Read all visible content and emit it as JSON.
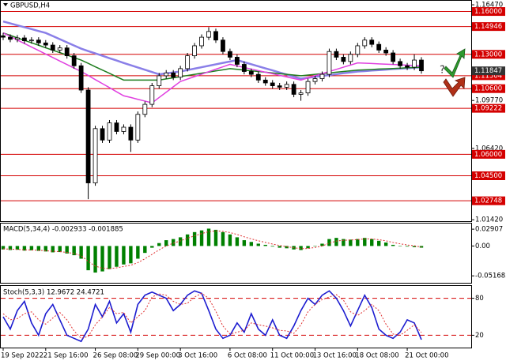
{
  "chart_data": [
    {
      "type": "candlestick",
      "title": "GBPUSD,H4",
      "categories": [
        "19 Sep 2022",
        null,
        null,
        null,
        null,
        null,
        "21 Sep 16:00",
        null,
        null,
        null,
        null,
        null,
        null,
        "26 Sep 08:00",
        null,
        null,
        null,
        null,
        null,
        "29 Sep 00:00",
        null,
        null,
        null,
        null,
        null,
        "3 Oct 16:00",
        null,
        null,
        null,
        null,
        null,
        null,
        "6 Oct 08:00",
        null,
        null,
        null,
        null,
        null,
        "11 Oct 00:00",
        null,
        null,
        null,
        null,
        null,
        "13 Oct 16:00",
        null,
        null,
        null,
        null,
        null,
        "18 Oct 08:00",
        null,
        null,
        null,
        null,
        null,
        null,
        "21 Oct 00:00",
        null,
        null
      ],
      "open": [
        1.143,
        1.142,
        1.1405,
        1.1415,
        1.1395,
        1.14,
        1.138,
        1.1365,
        1.133,
        1.1345,
        1.129,
        1.122,
        1.105,
        1.04,
        1.078,
        1.07,
        1.082,
        1.076,
        1.079,
        1.07,
        1.088,
        1.095,
        1.108,
        1.115,
        1.117,
        1.114,
        1.12,
        1.129,
        1.136,
        1.142,
        1.146,
        1.14,
        1.132,
        1.128,
        1.123,
        1.118,
        1.116,
        1.112,
        1.11,
        1.108,
        1.107,
        1.109,
        1.102,
        1.103,
        1.111,
        1.113,
        1.116,
        1.132,
        1.128,
        1.125,
        1.13,
        1.136,
        1.14,
        1.137,
        1.133,
        1.131,
        1.125,
        1.122,
        1.121,
        1.126
      ],
      "high": [
        1.145,
        1.144,
        1.1435,
        1.1435,
        1.142,
        1.142,
        1.14,
        1.1385,
        1.1365,
        1.1365,
        1.131,
        1.124,
        1.107,
        1.08,
        1.08,
        1.084,
        1.084,
        1.081,
        1.081,
        1.09,
        1.097,
        1.11,
        1.117,
        1.119,
        1.119,
        1.122,
        1.131,
        1.138,
        1.144,
        1.149,
        1.148,
        1.142,
        1.134,
        1.13,
        1.125,
        1.12,
        1.118,
        1.114,
        1.112,
        1.11,
        1.111,
        1.111,
        1.105,
        1.113,
        1.115,
        1.118,
        1.134,
        1.134,
        1.13,
        1.132,
        1.138,
        1.142,
        1.142,
        1.139,
        1.135,
        1.133,
        1.127,
        1.124,
        1.13,
        1.128
      ],
      "low": [
        1.14,
        1.1385,
        1.1385,
        1.1375,
        1.1375,
        1.136,
        1.1345,
        1.131,
        1.131,
        1.127,
        1.12,
        1.103,
        1.0286,
        1.038,
        1.068,
        1.068,
        1.074,
        1.074,
        1.0617,
        1.068,
        1.086,
        1.093,
        1.106,
        1.113,
        1.112,
        1.112,
        1.118,
        1.127,
        1.134,
        1.14,
        1.138,
        1.13,
        1.126,
        1.121,
        1.116,
        1.114,
        1.11,
        1.108,
        1.106,
        1.105,
        1.105,
        1.1,
        1.0975,
        1.101,
        1.109,
        1.111,
        1.114,
        1.126,
        1.123,
        1.123,
        1.128,
        1.134,
        1.135,
        1.131,
        1.129,
        1.123,
        1.12,
        1.119,
        1.119,
        1.1165
      ],
      "close": [
        1.142,
        1.1405,
        1.1415,
        1.1395,
        1.14,
        1.138,
        1.1365,
        1.133,
        1.1345,
        1.129,
        1.122,
        1.105,
        1.04,
        1.078,
        1.07,
        1.082,
        1.076,
        1.079,
        1.07,
        1.088,
        1.095,
        1.108,
        1.115,
        1.117,
        1.114,
        1.12,
        1.129,
        1.136,
        1.142,
        1.146,
        1.14,
        1.132,
        1.128,
        1.123,
        1.118,
        1.116,
        1.112,
        1.11,
        1.108,
        1.107,
        1.109,
        1.102,
        1.103,
        1.111,
        1.113,
        1.116,
        1.132,
        1.128,
        1.125,
        1.13,
        1.136,
        1.14,
        1.137,
        1.133,
        1.131,
        1.125,
        1.122,
        1.121,
        1.126,
        1.11847
      ],
      "lines": [
        {
          "color": "#8a7fe8",
          "values": [
            1.153,
            1.1517,
            1.1503,
            1.149,
            1.1477,
            1.1463,
            1.145,
            1.1428,
            1.1406,
            1.1384,
            1.1362,
            1.134,
            1.1323,
            1.1307,
            1.129,
            1.1273,
            1.1257,
            1.124,
            1.1224,
            1.1208,
            1.1192,
            1.1176,
            1.116,
            1.1167,
            1.1173,
            1.118,
            1.119,
            1.12,
            1.121,
            1.122,
            1.123,
            1.124,
            1.125,
            1.126,
            1.1245,
            1.1231,
            1.1216,
            1.1202,
            1.1188,
            1.1173,
            1.1159,
            1.1144,
            1.113,
            1.1136,
            1.1143,
            1.1149,
            1.1155,
            1.1161,
            1.1168,
            1.1174,
            1.118,
            1.1183,
            1.1187,
            1.119,
            1.1193,
            1.1197,
            1.12,
            1.1203,
            1.1207,
            1.121
          ]
        },
        {
          "color": "#1e7d1e",
          "values": [
            1.145,
            1.1433,
            1.1415,
            1.1398,
            1.1381,
            1.1364,
            1.1346,
            1.1329,
            1.1312,
            1.1295,
            1.1277,
            1.126,
            1.1237,
            1.1213,
            1.119,
            1.1167,
            1.1143,
            1.112,
            1.112,
            1.112,
            1.112,
            1.112,
            1.112,
            1.1128,
            1.1136,
            1.1144,
            1.1152,
            1.116,
            1.1168,
            1.1176,
            1.1184,
            1.1192,
            1.12,
            1.1195,
            1.119,
            1.1185,
            1.118,
            1.1175,
            1.117,
            1.1165,
            1.116,
            1.1155,
            1.115,
            1.1155,
            1.116,
            1.1165,
            1.117,
            1.1175,
            1.118,
            1.1185,
            1.119,
            1.1192,
            1.1194,
            1.1197,
            1.1199,
            1.1201,
            1.1203,
            1.1206,
            1.1208,
            1.121
          ]
        },
        {
          "color": "#e040e0",
          "values": [
            1.145,
            1.1425,
            1.14,
            1.1376,
            1.1351,
            1.1327,
            1.1302,
            1.1278,
            1.1253,
            1.1229,
            1.1204,
            1.118,
            1.1152,
            1.1123,
            1.1095,
            1.1067,
            1.1038,
            1.101,
            1.0998,
            1.0985,
            1.0973,
            1.096,
            1.0998,
            1.1035,
            1.1073,
            1.111,
            1.1127,
            1.1144,
            1.1161,
            1.1179,
            1.1196,
            1.1213,
            1.123,
            1.1219,
            1.1208,
            1.1197,
            1.1186,
            1.1175,
            1.1164,
            1.1153,
            1.1142,
            1.1131,
            1.112,
            1.1135,
            1.115,
            1.1165,
            1.118,
            1.1195,
            1.121,
            1.1225,
            1.124,
            1.1238,
            1.1236,
            1.1233,
            1.1231,
            1.1229,
            1.1227,
            1.1224,
            1.1222,
            1.122
          ]
        }
      ],
      "ylim": [
        1.0132,
        1.1675
      ],
      "yticks": [
        {
          "value": 1.1647,
          "label": "1.16470"
        },
        {
          "value": 1.0977,
          "label": "1.09770"
        },
        {
          "value": 1.0642,
          "label": "1.06420"
        },
        {
          "value": 1.0142,
          "label": "1.01420"
        }
      ],
      "levels": [
        {
          "value": 1.16,
          "label": "1.16000"
        },
        1.14946,
        {
          "value": 1.13,
          "label": "1.13000"
        },
        1.11504,
        {
          "value": 1.106,
          "label": "1.10600"
        },
        1.09222,
        {
          "value": 1.06,
          "label": "1.06000"
        },
        {
          "value": 1.045,
          "label": "1.04500"
        },
        1.02748
      ],
      "level_color": "#d40000",
      "current_price": 1.11847,
      "annotation": "?"
    },
    {
      "type": "macd",
      "title": "MACD(5,34,4) -0.002933 -0.001885",
      "values": [
        -0.006,
        -0.007,
        -0.0065,
        -0.008,
        -0.0075,
        -0.0085,
        -0.0095,
        -0.011,
        -0.0105,
        -0.013,
        -0.016,
        -0.022,
        -0.042,
        -0.046,
        -0.044,
        -0.04,
        -0.036,
        -0.032,
        -0.03,
        -0.022,
        -0.012,
        -0.003,
        0.005,
        0.01,
        0.012,
        0.015,
        0.02,
        0.024,
        0.027,
        0.03,
        0.028,
        0.024,
        0.02,
        0.015,
        0.01,
        0.007,
        0.004,
        0.002,
        -0.001,
        -0.003,
        -0.004,
        -0.006,
        -0.007,
        -0.004,
        0.0,
        0.004,
        0.012,
        0.014,
        0.012,
        0.011,
        0.012,
        0.014,
        0.012,
        0.009,
        0.006,
        0.002,
        0.0,
        -0.001,
        -0.002,
        -0.002933
      ],
      "color": "#008000",
      "signal": [
        -0.005,
        -0.0055,
        -0.006,
        -0.0066,
        -0.007,
        -0.0075,
        -0.0082,
        -0.0092,
        -0.0098,
        -0.0111,
        -0.0131,
        -0.0167,
        -0.0268,
        -0.0348,
        -0.0385,
        -0.0391,
        -0.0378,
        -0.0355,
        -0.0333,
        -0.0288,
        -0.0221,
        -0.0145,
        -0.0067,
        0.0,
        0.0048,
        0.0089,
        0.0133,
        0.0176,
        0.0214,
        0.0248,
        0.0261,
        0.0253,
        0.0232,
        0.0199,
        0.0159,
        0.0123,
        0.009,
        0.0062,
        0.0033,
        0.0008,
        -0.0011,
        -0.0031,
        -0.0047,
        -0.0044,
        -0.0026,
        0.0,
        0.0048,
        0.0085,
        0.0099,
        0.0103,
        0.011,
        0.0122,
        0.0121,
        0.0109,
        0.0089,
        0.0061,
        0.0037,
        0.0018,
        0.0003,
        -0.001885
      ],
      "signal_color": "#e03030",
      "ylim": [
        -0.0637,
        0.0388
      ],
      "yticks": [
        0.02907,
        {
          "value": 0,
          "label": "0.00"
        },
        -0.051685
      ]
    },
    {
      "type": "stochastic",
      "title": "Stoch(5,3,3) 12.9672 24.4721",
      "series": [
        {
          "color": "#1c1cd0",
          "values": [
            50,
            30,
            60,
            75,
            40,
            20,
            55,
            70,
            45,
            20,
            15,
            10,
            30,
            70,
            50,
            75,
            40,
            55,
            25,
            70,
            85,
            90,
            85,
            80,
            60,
            70,
            85,
            92,
            88,
            60,
            30,
            15,
            20,
            40,
            25,
            55,
            30,
            20,
            45,
            20,
            15,
            35,
            60,
            80,
            70,
            85,
            92,
            80,
            60,
            35,
            60,
            85,
            65,
            30,
            20,
            15,
            25,
            45,
            40,
            12.9672
          ]
        },
        {
          "color": "#e03030",
          "values": [
            55,
            45,
            47,
            55,
            58,
            45,
            38,
            48,
            57,
            45,
            27,
            15,
            18,
            37,
            50,
            65,
            55,
            57,
            40,
            50,
            60,
            82,
            87,
            85,
            75,
            70,
            72,
            82,
            88,
            80,
            59,
            35,
            22,
            25,
            28,
            40,
            37,
            35,
            32,
            28,
            27,
            23,
            37,
            58,
            70,
            78,
            82,
            86,
            77,
            58,
            52,
            60,
            70,
            60,
            38,
            22,
            20,
            28,
            37,
            24.4721
          ]
        }
      ],
      "ylim": [
        0,
        100
      ],
      "yticks": [
        80,
        20
      ],
      "tick_line_color": "#d40000"
    }
  ]
}
